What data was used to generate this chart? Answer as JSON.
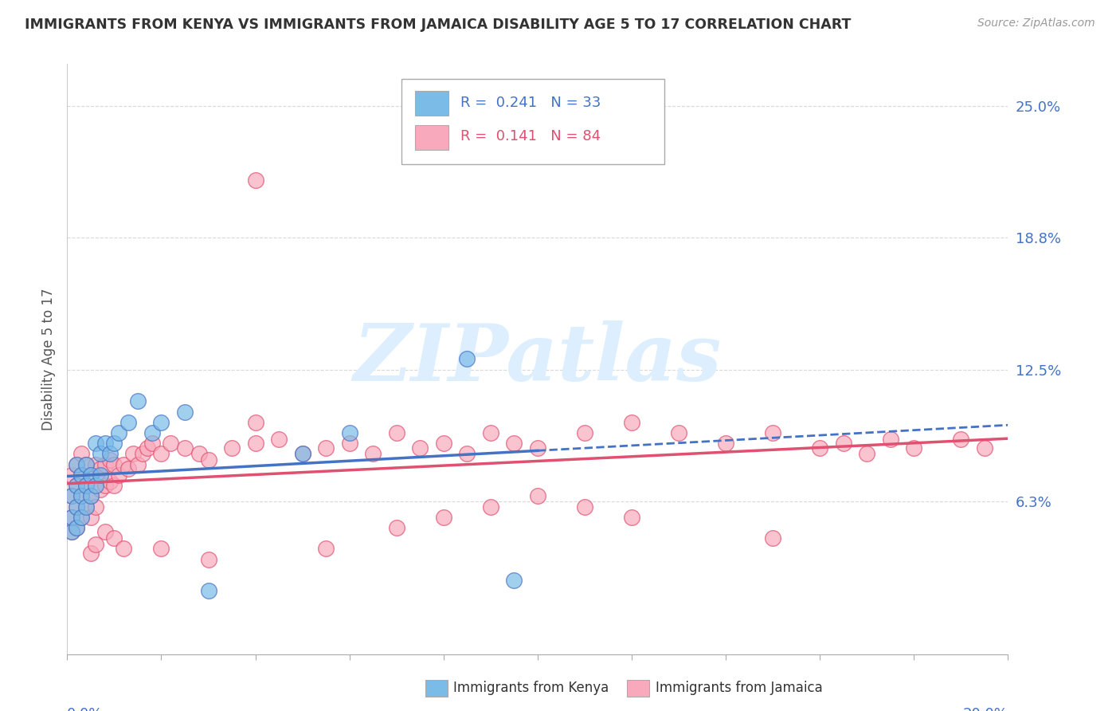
{
  "title": "IMMIGRANTS FROM KENYA VS IMMIGRANTS FROM JAMAICA DISABILITY AGE 5 TO 17 CORRELATION CHART",
  "source": "Source: ZipAtlas.com",
  "ylabel": "Disability Age 5 to 17",
  "ytick_vals": [
    0.0,
    0.0625,
    0.125,
    0.1875,
    0.25
  ],
  "ytick_labels": [
    "",
    "6.3%",
    "12.5%",
    "18.8%",
    "25.0%"
  ],
  "xlim": [
    0.0,
    0.2
  ],
  "ylim": [
    -0.01,
    0.27
  ],
  "kenya_color": "#7abbe8",
  "kenya_color_dark": "#4472c4",
  "jamaica_color": "#f8aabc",
  "jamaica_color_dark": "#e05070",
  "kenya_R": 0.241,
  "kenya_N": 33,
  "jamaica_R": 0.141,
  "jamaica_N": 84,
  "watermark_text": "ZIPatlas",
  "watermark_color": "#ddeeff",
  "background_color": "#ffffff",
  "grid_color": "#d0d0d0",
  "title_color": "#333333",
  "right_axis_color": "#4472c4",
  "source_color": "#999999",
  "kenya_scatter_x": [
    0.001,
    0.001,
    0.001,
    0.002,
    0.002,
    0.002,
    0.002,
    0.003,
    0.003,
    0.003,
    0.004,
    0.004,
    0.004,
    0.005,
    0.005,
    0.006,
    0.006,
    0.007,
    0.007,
    0.008,
    0.009,
    0.01,
    0.011,
    0.013,
    0.015,
    0.018,
    0.02,
    0.025,
    0.03,
    0.05,
    0.06,
    0.085,
    0.095
  ],
  "kenya_scatter_y": [
    0.048,
    0.055,
    0.065,
    0.05,
    0.06,
    0.07,
    0.08,
    0.055,
    0.065,
    0.075,
    0.06,
    0.07,
    0.08,
    0.065,
    0.075,
    0.07,
    0.09,
    0.075,
    0.085,
    0.09,
    0.085,
    0.09,
    0.095,
    0.1,
    0.11,
    0.095,
    0.1,
    0.105,
    0.02,
    0.085,
    0.095,
    0.13,
    0.025
  ],
  "jamaica_scatter_x": [
    0.001,
    0.001,
    0.001,
    0.001,
    0.002,
    0.002,
    0.002,
    0.002,
    0.003,
    0.003,
    0.003,
    0.003,
    0.004,
    0.004,
    0.004,
    0.005,
    0.005,
    0.005,
    0.006,
    0.006,
    0.007,
    0.007,
    0.008,
    0.008,
    0.009,
    0.009,
    0.01,
    0.01,
    0.011,
    0.012,
    0.013,
    0.014,
    0.015,
    0.016,
    0.017,
    0.018,
    0.02,
    0.022,
    0.025,
    0.028,
    0.03,
    0.035,
    0.04,
    0.04,
    0.045,
    0.05,
    0.055,
    0.06,
    0.065,
    0.07,
    0.075,
    0.08,
    0.085,
    0.09,
    0.095,
    0.1,
    0.11,
    0.12,
    0.13,
    0.14,
    0.15,
    0.16,
    0.165,
    0.17,
    0.175,
    0.18,
    0.19,
    0.195,
    0.04,
    0.055,
    0.008,
    0.01,
    0.012,
    0.005,
    0.006,
    0.02,
    0.03,
    0.07,
    0.08,
    0.09,
    0.1,
    0.11,
    0.12,
    0.15
  ],
  "jamaica_scatter_y": [
    0.048,
    0.055,
    0.065,
    0.075,
    0.05,
    0.06,
    0.07,
    0.08,
    0.055,
    0.065,
    0.075,
    0.085,
    0.06,
    0.07,
    0.08,
    0.055,
    0.065,
    0.075,
    0.06,
    0.08,
    0.068,
    0.078,
    0.07,
    0.08,
    0.072,
    0.082,
    0.07,
    0.08,
    0.075,
    0.08,
    0.078,
    0.085,
    0.08,
    0.085,
    0.088,
    0.09,
    0.085,
    0.09,
    0.088,
    0.085,
    0.082,
    0.088,
    0.09,
    0.1,
    0.092,
    0.085,
    0.088,
    0.09,
    0.085,
    0.095,
    0.088,
    0.09,
    0.085,
    0.095,
    0.09,
    0.088,
    0.095,
    0.1,
    0.095,
    0.09,
    0.095,
    0.088,
    0.09,
    0.085,
    0.092,
    0.088,
    0.092,
    0.088,
    0.215,
    0.04,
    0.048,
    0.045,
    0.04,
    0.038,
    0.042,
    0.04,
    0.035,
    0.05,
    0.055,
    0.06,
    0.065,
    0.06,
    0.055,
    0.045
  ]
}
